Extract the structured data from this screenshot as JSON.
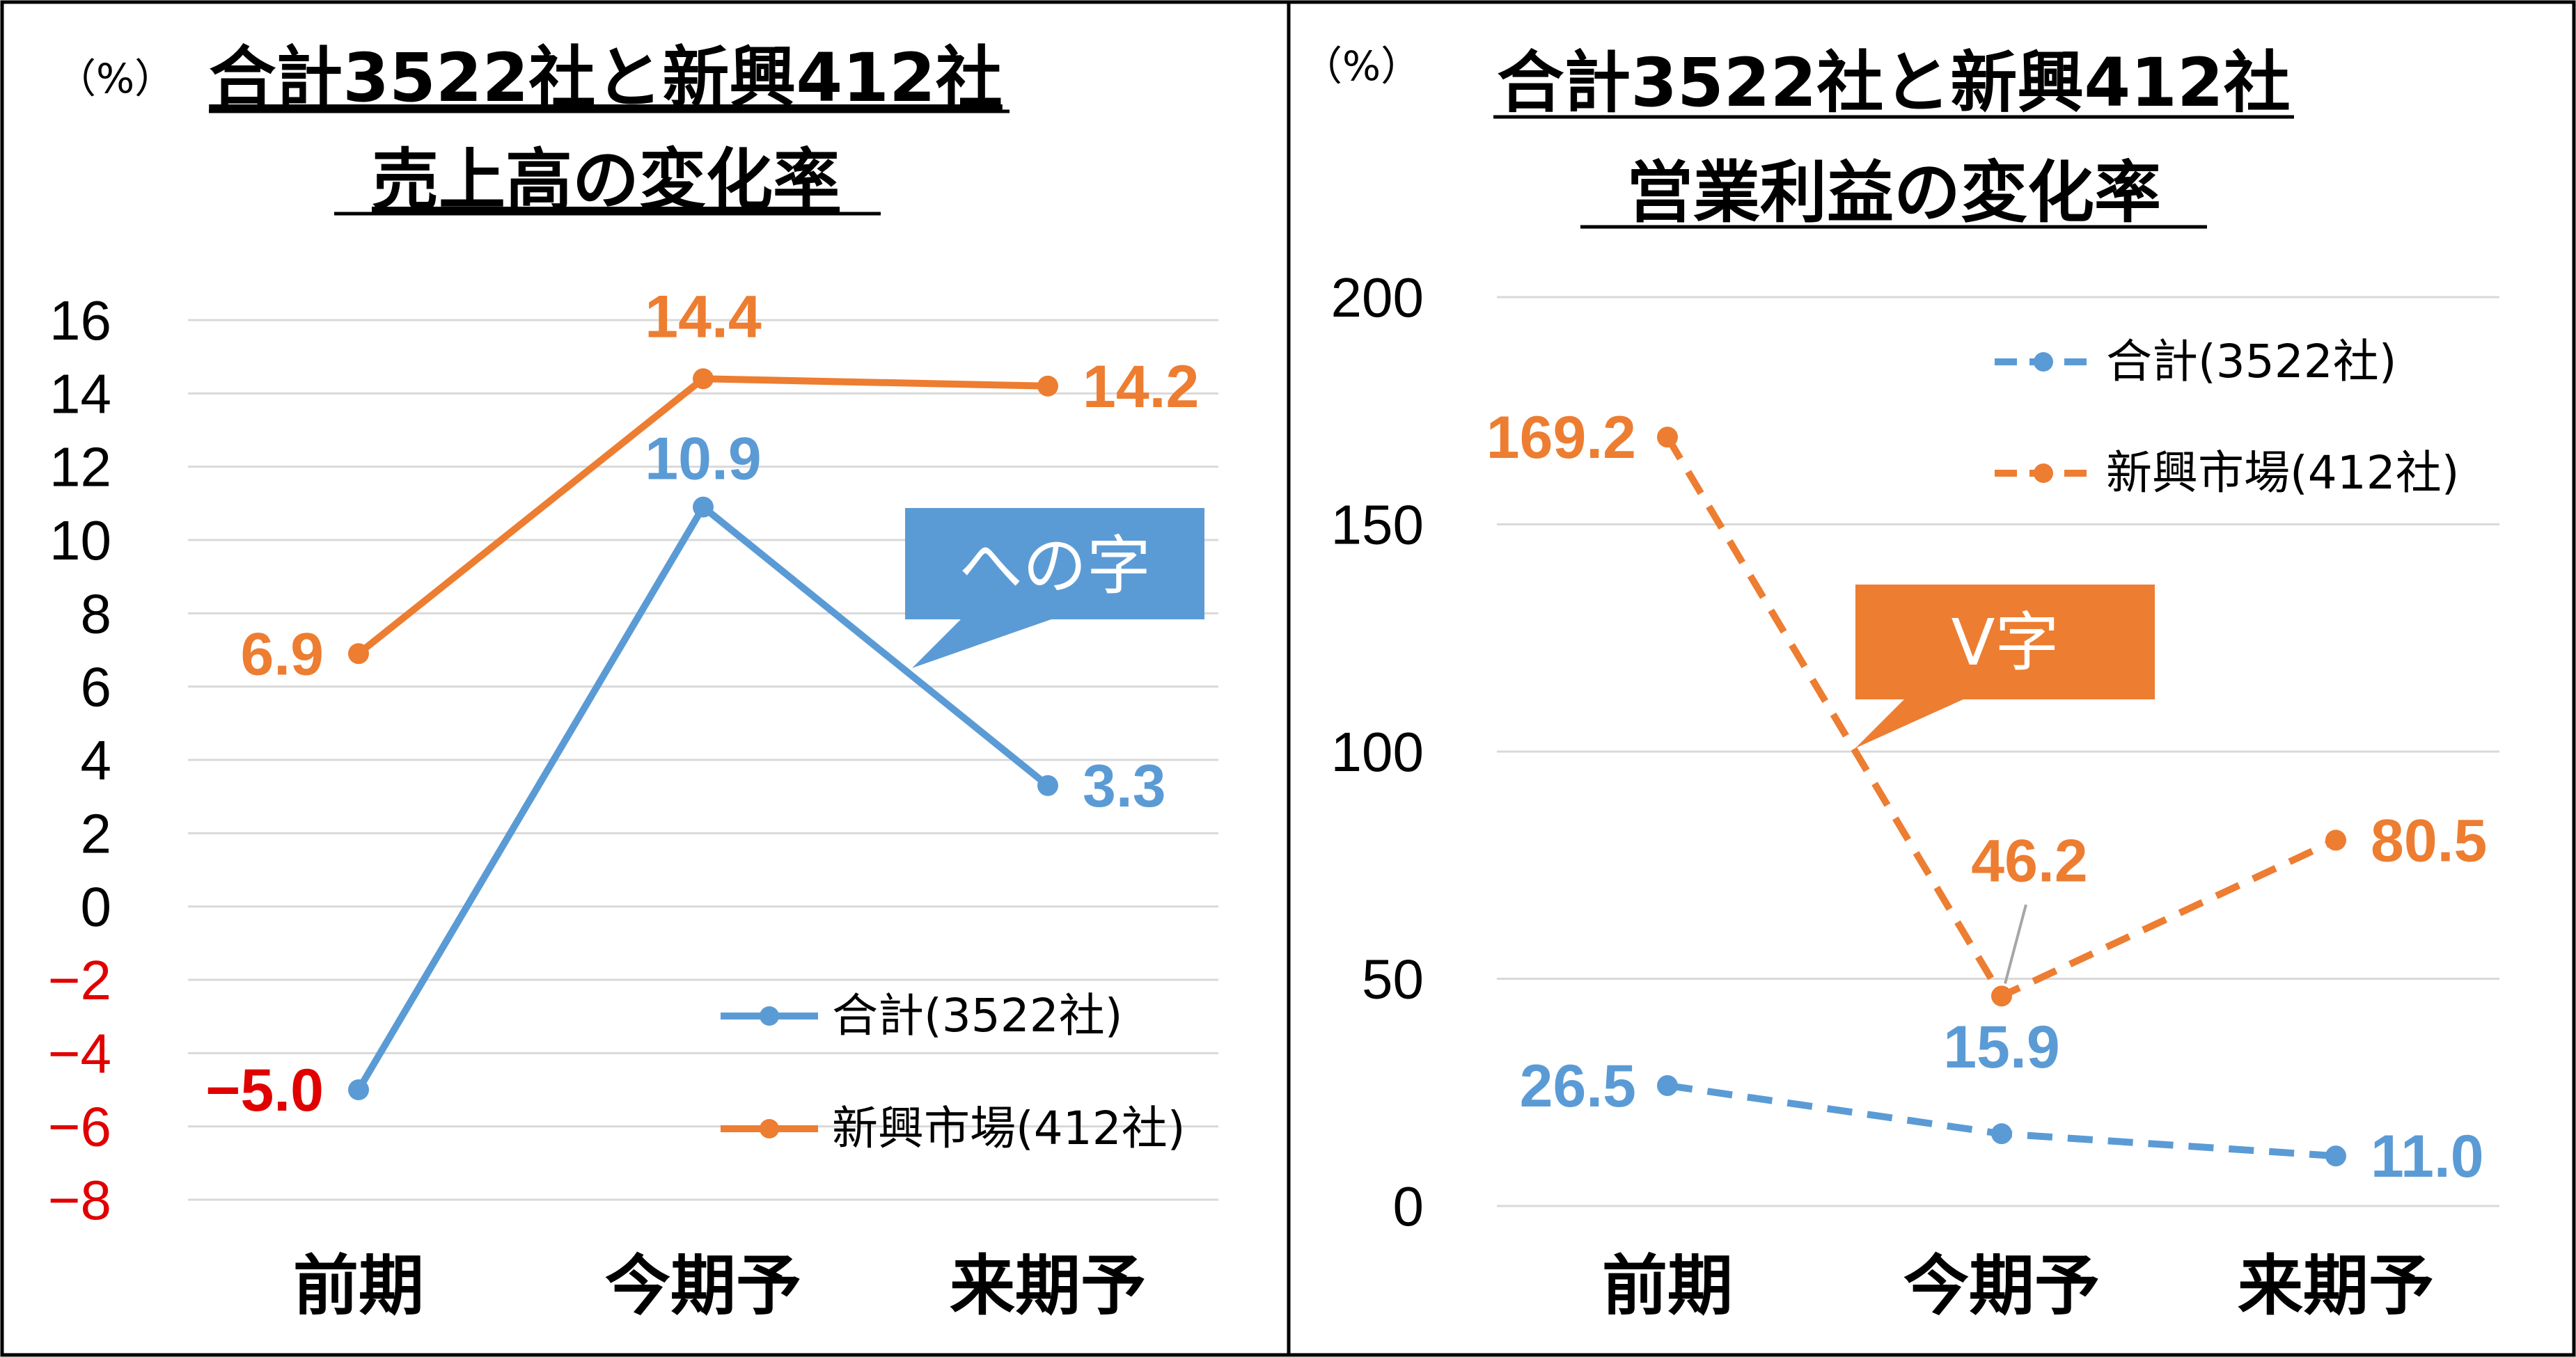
{
  "colors": {
    "series1": "#5B9BD5",
    "series2": "#ED7D31",
    "negative": "#E00000",
    "grid": "#D9D9D9",
    "border": "#000000"
  },
  "chart_data": [
    {
      "type": "line",
      "title_line1": "合計3522社と新興412社",
      "title_line2": "売上高の変化率",
      "unit": "（%）",
      "categories": [
        "前期",
        "今期予",
        "来期予"
      ],
      "yticks": [
        16,
        14,
        12,
        10,
        8,
        6,
        4,
        2,
        0,
        -2,
        -4,
        -6,
        -8
      ],
      "ytick_labels": [
        "16",
        "14",
        "12",
        "10",
        "8",
        "6",
        "4",
        "2",
        "0",
        "−2",
        "−4",
        "−6",
        "−8"
      ],
      "ylim": [
        -8,
        16
      ],
      "grid": true,
      "line_style": "solid",
      "legend_position": "bottom-right",
      "series": [
        {
          "name": "合計(3522社)",
          "values": [
            -5.0,
            10.9,
            3.3
          ],
          "labels": [
            "−5.0",
            "10.9",
            "3.3"
          ]
        },
        {
          "name": "新興市場(412社)",
          "values": [
            6.9,
            14.4,
            14.2
          ],
          "labels": [
            "6.9",
            "14.4",
            "14.2"
          ]
        }
      ],
      "annotation": "への字"
    },
    {
      "type": "line",
      "title_line1": "合計3522社と新興412社",
      "title_line2": "営業利益の変化率",
      "unit": "（%）",
      "categories": [
        "前期",
        "今期予",
        "来期予"
      ],
      "yticks": [
        200,
        150,
        100,
        50,
        0
      ],
      "ytick_labels": [
        "200",
        "150",
        "100",
        "50",
        "0"
      ],
      "ylim": [
        0,
        200
      ],
      "grid": true,
      "line_style": "dashed",
      "legend_position": "top-right",
      "series": [
        {
          "name": "合計(3522社)",
          "values": [
            26.5,
            15.9,
            11.0
          ],
          "labels": [
            "26.5",
            "15.9",
            "11.0"
          ]
        },
        {
          "name": "新興市場(412社)",
          "values": [
            169.2,
            46.2,
            80.5
          ],
          "labels": [
            "169.2",
            "46.2",
            "80.5"
          ]
        }
      ],
      "annotation": "V字"
    }
  ]
}
